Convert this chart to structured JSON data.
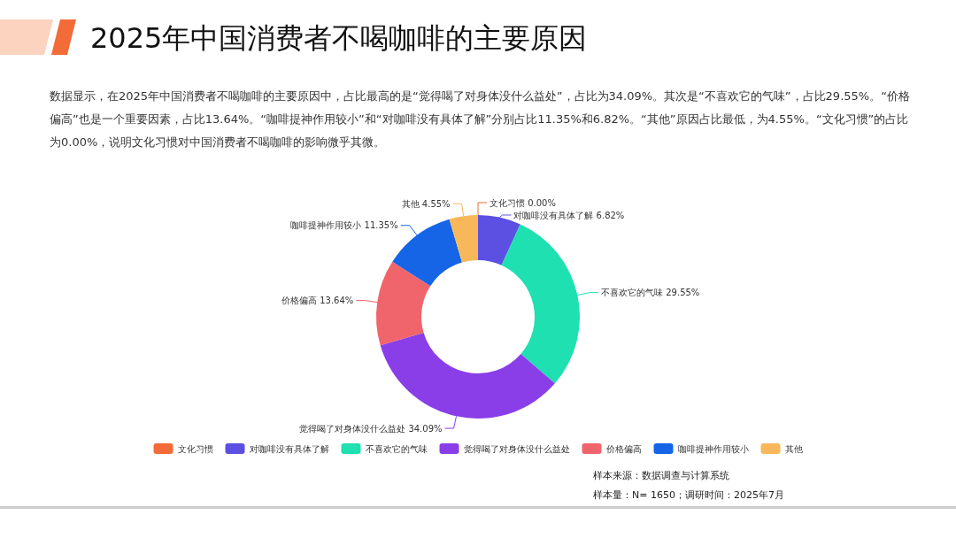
{
  "chart_data": {
    "type": "donut",
    "title": "2025年中国消费者不喝咖啡的主要原因",
    "subtitle": "数据显示，在2025年中国消费者不喝咖啡的主要原因中，占比最高的是“觉得喝了对身体没什么益处”，占比为34.09%。其次是“不喜欢它的气味”，占比29.55%。“价格偏高”也是一个重要因素，占比13.64%。“咖啡提神作用较小”和“对咖啡没有具体了解”分别占比11.35%和6.82%。“其他”原因占比最低，为4.55%。“文化习惯”的占比为0.00%，说明文化习惯对中国消费者不喝咖啡的影响微乎其微。",
    "categories": [
      "文化习惯",
      "对咖啡没有具体了解",
      "不喜欢它的气味",
      "觉得喝了对身体没什么益处",
      "价格偏高",
      "咖啡提神作用较小",
      "其他"
    ],
    "values": [
      0.0,
      6.82,
      29.55,
      34.09,
      13.64,
      11.35,
      4.55
    ],
    "value_labels": [
      "0.00%",
      "6.82%",
      "29.55%",
      "34.09%",
      "13.64%",
      "11.35%",
      "4.55%"
    ],
    "colors": [
      "#f26b38",
      "#5b50e2",
      "#1fe0b0",
      "#8a3ee8",
      "#f0646b",
      "#1565e6",
      "#f8b85a"
    ],
    "legend": "bottom",
    "annotations": [
      "样本来源：数据调查与计算系统",
      "样本量：N= 1650；调研时间：2025年7月"
    ]
  }
}
